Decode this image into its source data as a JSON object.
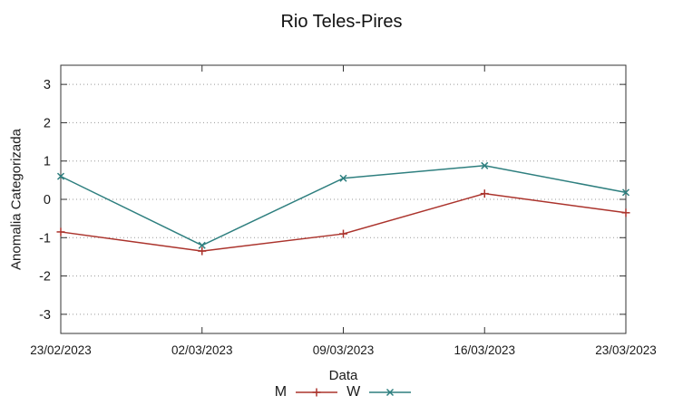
{
  "chart_data": {
    "type": "line",
    "title": "Rio Teles-Pires",
    "xlabel": "Data",
    "ylabel": "Anomalia Categorizada",
    "categories": [
      "23/02/2023",
      "02/03/2023",
      "09/03/2023",
      "16/03/2023",
      "23/03/2023"
    ],
    "series": [
      {
        "name": "M",
        "color": "#ab332c",
        "marker": "plus",
        "values": [
          -0.85,
          -1.35,
          -0.9,
          0.15,
          -0.35
        ]
      },
      {
        "name": "W",
        "color": "#2e7f7f",
        "marker": "cross",
        "values": [
          0.6,
          -1.2,
          0.55,
          0.88,
          0.18
        ]
      }
    ],
    "ylim": [
      -3.5,
      3.5
    ],
    "yticks": [
      -3,
      -2,
      -1,
      0,
      1,
      2,
      3
    ],
    "grid": "horizontal-dotted",
    "legend_position": "below-xlabel",
    "colors": {
      "axis": "#333333",
      "grid": "#9a9a9a",
      "text": "#1a1a1a"
    }
  }
}
